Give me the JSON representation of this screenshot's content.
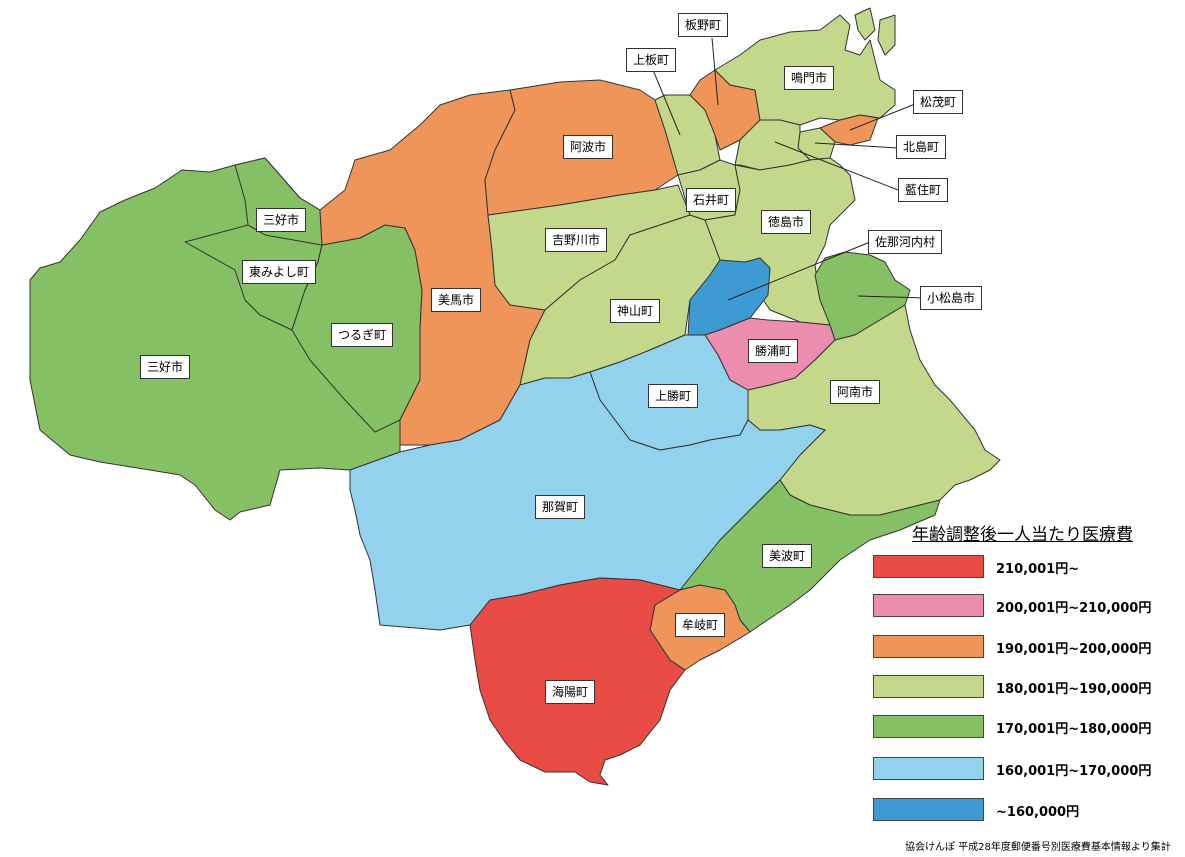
{
  "legend": {
    "title": "年齢調整後一人当たり医療費",
    "classes": [
      {
        "label": "210,001円~",
        "color": "#e84c45"
      },
      {
        "label": "200,001円~210,000円",
        "color": "#ec8db0"
      },
      {
        "label": "190,001円~200,000円",
        "color": "#f0955a"
      },
      {
        "label": "180,001円~190,000円",
        "color": "#c3d88a"
      },
      {
        "label": "170,001円~180,000円",
        "color": "#86c064"
      },
      {
        "label": "160,001円~170,000円",
        "color": "#92d2ed"
      },
      {
        "label": "~160,000円",
        "color": "#3e9ad3"
      }
    ]
  },
  "municipalities": [
    {
      "name": "板野町"
    },
    {
      "name": "上板町"
    },
    {
      "name": "鳴門市"
    },
    {
      "name": "松茂町"
    },
    {
      "name": "北島町"
    },
    {
      "name": "藍住町"
    },
    {
      "name": "阿波市"
    },
    {
      "name": "三好市"
    },
    {
      "name": "石井町"
    },
    {
      "name": "徳島市"
    },
    {
      "name": "佐那河内村"
    },
    {
      "name": "吉野川市"
    },
    {
      "name": "東みよし町"
    },
    {
      "name": "小松島市"
    },
    {
      "name": "美馬市"
    },
    {
      "name": "神山町"
    },
    {
      "name": "つるぎ町"
    },
    {
      "name": "勝浦町"
    },
    {
      "name": "三好市"
    },
    {
      "name": "上勝町"
    },
    {
      "name": "阿南市"
    },
    {
      "name": "那賀町"
    },
    {
      "name": "美波町"
    },
    {
      "name": "牟岐町"
    },
    {
      "name": "海陽町"
    }
  ],
  "source": "協会けんぽ 平成28年度郵便番号別医療費基本情報より集計"
}
